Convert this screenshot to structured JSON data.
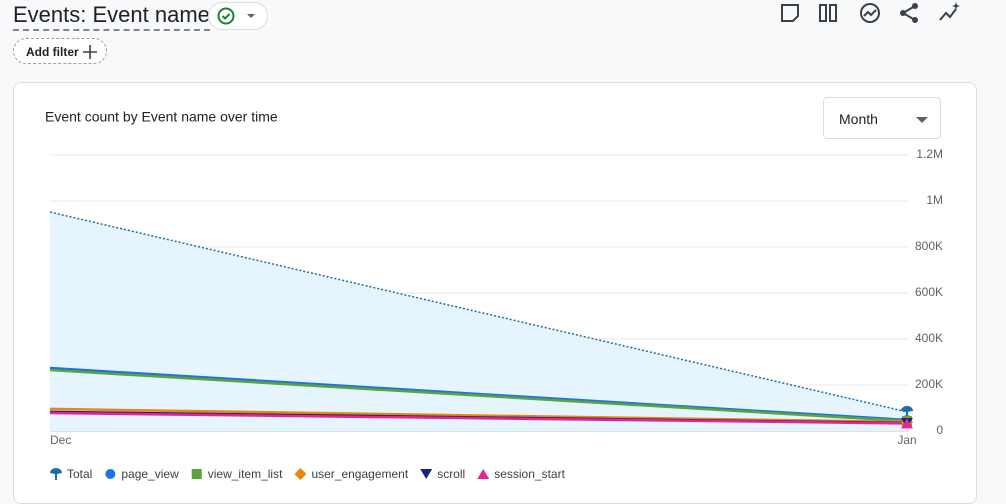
{
  "header": {
    "title": "Events: Event name",
    "add_filter": "Add filter"
  },
  "controls": {
    "period": "Month"
  },
  "chart_data": {
    "type": "line",
    "title": "Event count by Event name over time",
    "categories": [
      "Dec",
      "Jan"
    ],
    "series": [
      {
        "name": "Total",
        "color": "#1c6ea4",
        "marker": "pin",
        "dotted": true,
        "area": "#e6f4fd",
        "values": [
          952000,
          83000
        ]
      },
      {
        "name": "page_view",
        "color": "#1a73e8",
        "marker": "circle",
        "values": [
          274000,
          48000
        ]
      },
      {
        "name": "view_item_list",
        "color": "#5ba33b",
        "marker": "square",
        "values": [
          265000,
          43000
        ]
      },
      {
        "name": "user_engagement",
        "color": "#e8870e",
        "marker": "diamond",
        "values": [
          96000,
          39000
        ]
      },
      {
        "name": "scroll",
        "color": "#1a237e",
        "marker": "triangle-down",
        "values": [
          83000,
          35000
        ]
      },
      {
        "name": "session_start",
        "color": "#e52592",
        "marker": "triangle-up",
        "values": [
          78000,
          33000
        ]
      }
    ],
    "ylim": [
      0,
      1200000
    ],
    "yticks": [
      0,
      {
        "value": 200000,
        "label": "200K"
      },
      {
        "value": 400000,
        "label": "400K"
      },
      {
        "value": 600000,
        "label": "600K"
      },
      {
        "value": 800000,
        "label": "800K"
      },
      {
        "value": 1000000,
        "label": "1M"
      },
      {
        "value": 1200000,
        "label": "1.2M"
      }
    ],
    "grid": true
  }
}
